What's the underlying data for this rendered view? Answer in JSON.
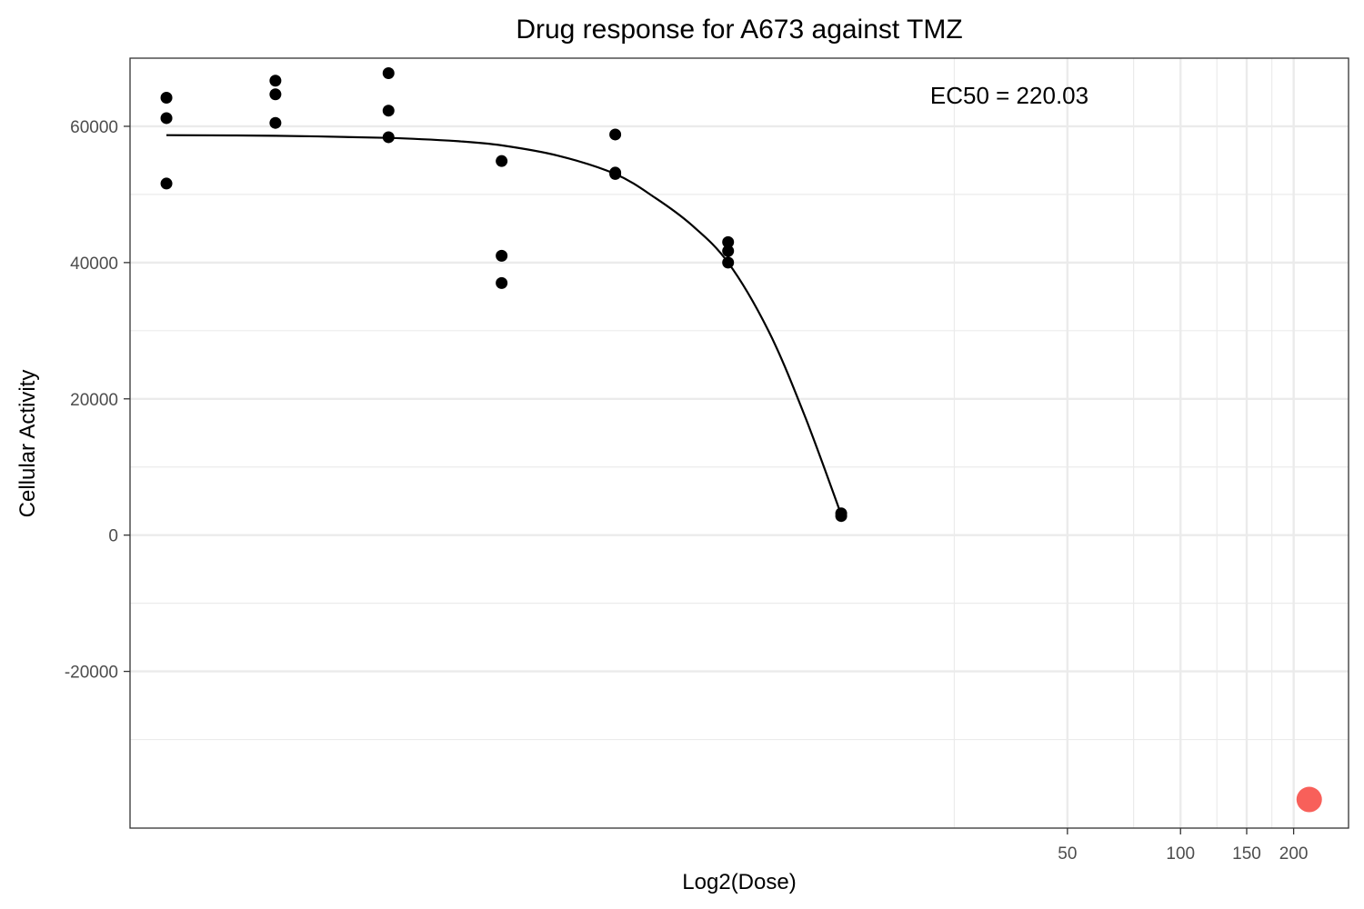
{
  "chart_data": {
    "type": "scatter",
    "title": "Drug response for A673 against TMZ",
    "xlabel": "Log2(Dose)",
    "ylabel": "Cellular Activity",
    "x_scale": "log2",
    "xlim": [
      0.16,
      280
    ],
    "ylim": [
      -43000,
      70000
    ],
    "x_ticks": [
      50,
      100,
      150,
      200
    ],
    "x_minor_grid": [
      25,
      75,
      125,
      175
    ],
    "y_ticks": [
      -20000,
      0,
      20000,
      40000,
      60000
    ],
    "y_minor_grid": [
      -30000,
      -10000,
      10000,
      30000,
      50000
    ],
    "grid": true,
    "legend": "none",
    "annotation": "EC50 = 220.03",
    "points": [
      {
        "x": 0.2,
        "y": 64200
      },
      {
        "x": 0.2,
        "y": 61200
      },
      {
        "x": 0.2,
        "y": 51600
      },
      {
        "x": 0.39,
        "y": 66700
      },
      {
        "x": 0.39,
        "y": 64700
      },
      {
        "x": 0.39,
        "y": 60500
      },
      {
        "x": 0.78,
        "y": 67800
      },
      {
        "x": 0.78,
        "y": 62300
      },
      {
        "x": 0.78,
        "y": 58400
      },
      {
        "x": 1.56,
        "y": 54900
      },
      {
        "x": 1.56,
        "y": 41000
      },
      {
        "x": 1.56,
        "y": 37000
      },
      {
        "x": 3.13,
        "y": 58800
      },
      {
        "x": 3.13,
        "y": 53200
      },
      {
        "x": 3.13,
        "y": 53000
      },
      {
        "x": 6.25,
        "y": 43000
      },
      {
        "x": 6.25,
        "y": 41700
      },
      {
        "x": 6.25,
        "y": 40000
      },
      {
        "x": 12.5,
        "y": 3200
      },
      {
        "x": 12.5,
        "y": 2800
      }
    ],
    "fit_curve": {
      "name": "fit",
      "x": [
        0.2,
        0.39,
        0.78,
        1.2,
        1.56,
        2.2,
        3.13,
        4.0,
        5.0,
        6.25,
        8.0,
        10.0,
        12.5
      ],
      "y": [
        58700,
        58600,
        58300,
        57800,
        57200,
        55700,
        53000,
        49500,
        45500,
        40000,
        30000,
        17500,
        3000
      ]
    },
    "ec50_point": {
      "x": 220.03,
      "y": -38800,
      "color": "#f8605a"
    },
    "point_color": "#000000",
    "line_color": "#000000",
    "grid_color": "#ebebeb",
    "panel_border_color": "#333333"
  }
}
